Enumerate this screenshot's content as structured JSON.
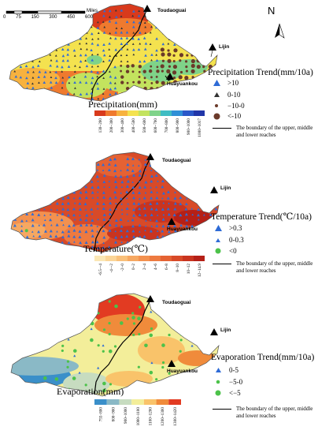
{
  "north_arrow": {
    "label": "N"
  },
  "scale_bar": {
    "ticks": [
      "0",
      "75",
      "150",
      "300",
      "450",
      "600"
    ],
    "unit": "Miles"
  },
  "places": {
    "toudaoguai": "Toudaoguai",
    "lijin": "Lijin",
    "huayuankou": "Huayuankou"
  },
  "panels": [
    {
      "map_title": "Precipitation(mm)",
      "trend_title": "Precipitation Trend(mm/10a)",
      "trend_items": [
        {
          "label": ">10",
          "symbol": "blue-triangle-icon"
        },
        {
          "label": "0-10",
          "symbol": "small-dark-triangle-icon"
        },
        {
          "label": "−10-0",
          "symbol": "small-brown-dot-icon"
        },
        {
          "label": "<-10",
          "symbol": "large-brown-dot-icon"
        }
      ],
      "boundary_label": "The boundary of the upper, middle and lower reaches",
      "colorbar": {
        "labels": [
          "130~200",
          "200~300",
          "300~400",
          "400~500",
          "500~600",
          "600~700",
          "700~800",
          "800~900",
          "900~1000",
          "1000~1017"
        ],
        "colors": [
          "#d83a1c",
          "#ef7a2e",
          "#f7b23f",
          "#f4e24f",
          "#c3e35e",
          "#7fd389",
          "#3fbcc2",
          "#2f8fd6",
          "#2a58c8",
          "#2136a8"
        ]
      }
    },
    {
      "map_title": "Temperature(℃)",
      "trend_title": "Temperature Trend(℃/10a)",
      "trend_items": [
        {
          "label": ">0.3",
          "symbol": "blue-triangle-icon"
        },
        {
          "label": "0-0.3",
          "symbol": "small-blue-triangle-icon"
        },
        {
          "label": "<0",
          "symbol": "green-dot-icon"
        }
      ],
      "boundary_label": "The boundary of the upper, middle and lower reaches",
      "colorbar": {
        "labels": [
          "-6.5~-4",
          "-4~-2",
          "-2~0",
          "0~2",
          "2~4",
          "4~6",
          "6~8",
          "8~10",
          "10~12",
          "12~14.9"
        ],
        "colors": [
          "#fbe7b4",
          "#fbd597",
          "#f9c07a",
          "#f6a862",
          "#f3914f",
          "#ee7a40",
          "#e56233",
          "#d84a28",
          "#c9341f",
          "#b52017"
        ]
      }
    },
    {
      "map_title": "Evaporation(mm)",
      "trend_title": "Evaporation Trend(mm/10a)",
      "trend_items": [
        {
          "label": "0-5",
          "symbol": "blue-triangle-icon"
        },
        {
          "label": "−5-0",
          "symbol": "small-green-dot-icon"
        },
        {
          "label": "<−5",
          "symbol": "green-dot-icon"
        }
      ],
      "boundary_label": "The boundary of the upper, middle and lower reaches",
      "colorbar": {
        "labels": [
          "755~800",
          "800~900",
          "900~1000",
          "1000~1100",
          "1100~1200",
          "1200~1300",
          "1300~1420"
        ],
        "colors": [
          "#3a8fc9",
          "#8ab9c6",
          "#c7dcc0",
          "#f3ee9a",
          "#f9c36a",
          "#f08b3b",
          "#e23b22"
        ]
      }
    }
  ]
}
